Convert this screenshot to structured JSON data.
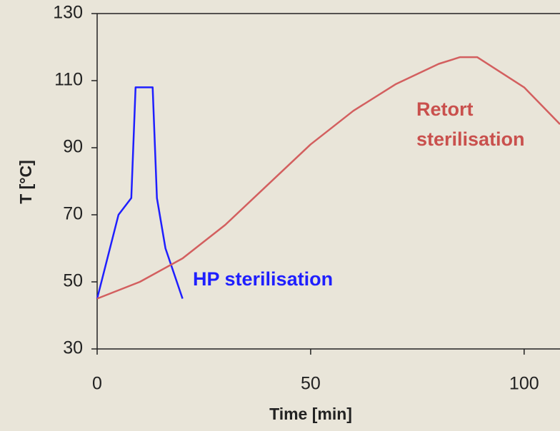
{
  "chart_data": {
    "type": "line",
    "xlabel": "Time [min]",
    "ylabel": "T [°C]",
    "xlim": [
      0,
      108.4
    ],
    "xticks": [
      0,
      50,
      100
    ],
    "ylim": [
      30,
      130
    ],
    "yticks": [
      30,
      50,
      70,
      90,
      110,
      130
    ],
    "series": [
      {
        "name": "HP sterilisation",
        "color": "#1f1fff",
        "x": [
          0,
          5,
          8,
          9,
          13,
          14,
          16,
          20
        ],
        "values": [
          45,
          70,
          75,
          108,
          108,
          75,
          60,
          45
        ]
      },
      {
        "name": "Retort sterilisation",
        "color": "#d35f5f",
        "x": [
          0,
          10,
          20,
          30,
          40,
          50,
          60,
          70,
          80,
          85,
          89,
          100,
          108.4
        ],
        "values": [
          45,
          50,
          57,
          67,
          79,
          91,
          101,
          109,
          115,
          117,
          117,
          108,
          97
        ]
      }
    ],
    "annotations": [
      {
        "lines": [
          "HP sterilisation"
        ],
        "color": "#1f1fff"
      },
      {
        "lines": [
          "Retort",
          "sterilisation"
        ],
        "color": "#c9504d"
      }
    ]
  }
}
